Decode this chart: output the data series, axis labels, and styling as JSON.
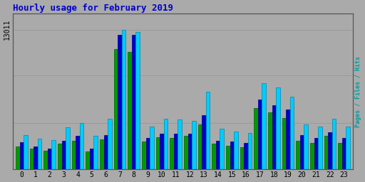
{
  "title": "Hourly usage for February 2019",
  "hours": [
    0,
    1,
    2,
    3,
    4,
    5,
    6,
    7,
    8,
    9,
    10,
    11,
    12,
    13,
    14,
    15,
    16,
    17,
    18,
    19,
    20,
    21,
    22,
    23
  ],
  "hits": [
    3200,
    2850,
    2750,
    3900,
    4350,
    3100,
    4750,
    13011,
    12800,
    4000,
    4700,
    4650,
    4500,
    7200,
    3800,
    3500,
    3400,
    8000,
    7600,
    6800,
    4200,
    4000,
    4750,
    4000
  ],
  "files": [
    2550,
    2150,
    1950,
    2700,
    3100,
    1950,
    3200,
    12550,
    12550,
    2900,
    3300,
    3300,
    3300,
    5050,
    2700,
    2600,
    2500,
    6500,
    6000,
    5600,
    3200,
    2900,
    3450,
    2900
  ],
  "pages": [
    2150,
    1950,
    1750,
    2400,
    2700,
    1650,
    2800,
    11200,
    10900,
    2600,
    3000,
    2900,
    3100,
    4200,
    2400,
    2200,
    2100,
    5700,
    5300,
    4800,
    2700,
    2500,
    3100,
    2500
  ],
  "hits_color": "#00CCFF",
  "files_color": "#0000CC",
  "pages_color": "#009900",
  "pages_edge": "#006600",
  "bg_color": "#AAAAAA",
  "title_color": "#0000CC",
  "ytick_label": "13011",
  "ylim": [
    0,
    14500
  ],
  "bar_width": 0.28,
  "grid_color": "#999999",
  "right_label_pages_color": "#008800",
  "right_label_files_color": "#0000CC",
  "right_label_hits_color": "#009999"
}
